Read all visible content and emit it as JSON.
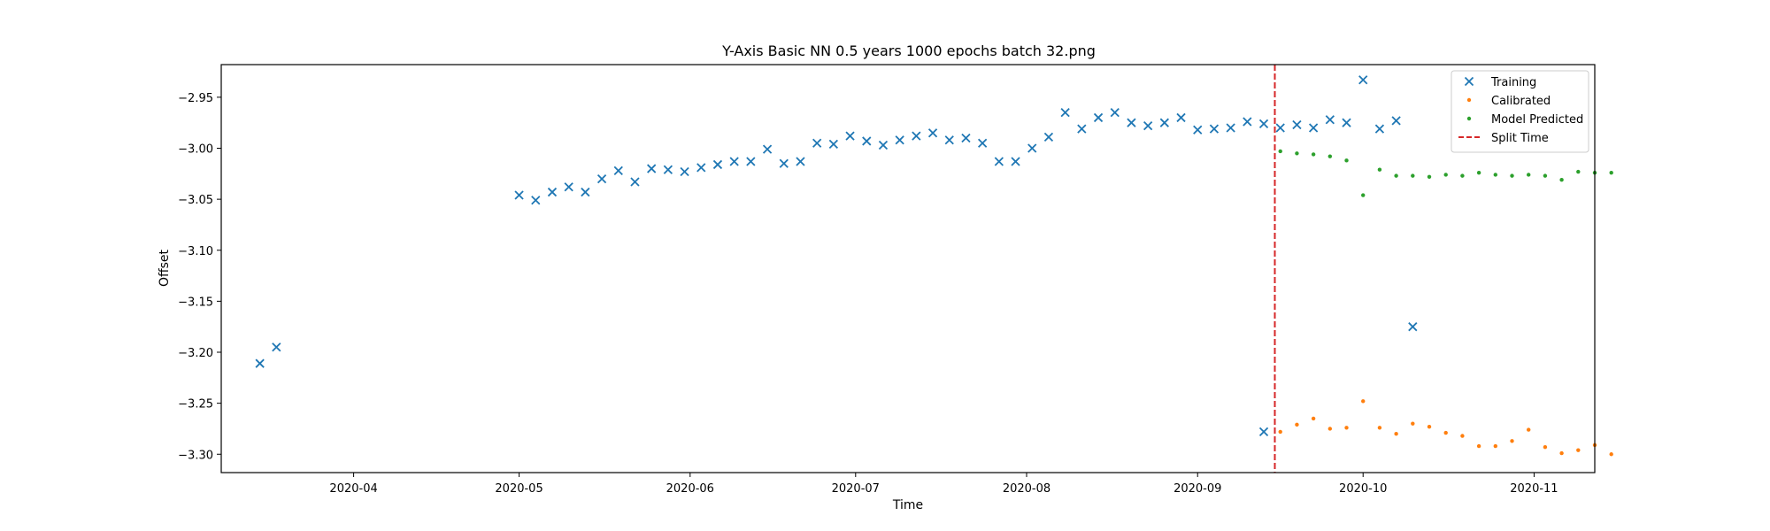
{
  "chart_data": {
    "type": "scatter",
    "title": "Y-Axis Basic NN 0.5 years 1000 epochs batch 32.png",
    "xlabel": "Time",
    "ylabel": "Offset",
    "x_is_date": true,
    "xlim": [
      "2020-03-08",
      "2020-11-12"
    ],
    "ylim": [
      -3.318,
      -2.918
    ],
    "x_ticks": [
      "2020-04-01",
      "2020-05-01",
      "2020-06-01",
      "2020-07-01",
      "2020-08-01",
      "2020-09-01",
      "2020-10-01",
      "2020-11-01"
    ],
    "x_tick_labels": [
      "2020-04",
      "2020-05",
      "2020-06",
      "2020-07",
      "2020-08",
      "2020-09",
      "2020-10",
      "2020-11"
    ],
    "y_ticks": [
      -2.95,
      -3.0,
      -3.05,
      -3.1,
      -3.15,
      -3.2,
      -3.25,
      -3.3
    ],
    "y_tick_labels": [
      "−2.95",
      "−3.00",
      "−3.05",
      "−3.10",
      "−3.15",
      "−3.20",
      "−3.25",
      "−3.30"
    ],
    "grid": false,
    "legend_position": "top-right",
    "split_time": "2020-09-15",
    "series": [
      {
        "name": "Training",
        "marker": "x",
        "color": "#1f77b4",
        "points": [
          [
            "2020-03-15",
            -3.211
          ],
          [
            "2020-03-18",
            -3.195
          ],
          [
            "2020-05-01",
            -3.046
          ],
          [
            "2020-05-04",
            -3.051
          ],
          [
            "2020-05-07",
            -3.043
          ],
          [
            "2020-05-10",
            -3.038
          ],
          [
            "2020-05-13",
            -3.043
          ],
          [
            "2020-05-16",
            -3.03
          ],
          [
            "2020-05-19",
            -3.022
          ],
          [
            "2020-05-22",
            -3.033
          ],
          [
            "2020-05-25",
            -3.02
          ],
          [
            "2020-05-28",
            -3.021
          ],
          [
            "2020-05-31",
            -3.023
          ],
          [
            "2020-06-03",
            -3.019
          ],
          [
            "2020-06-06",
            -3.016
          ],
          [
            "2020-06-09",
            -3.013
          ],
          [
            "2020-06-12",
            -3.013
          ],
          [
            "2020-06-15",
            -3.001
          ],
          [
            "2020-06-18",
            -3.015
          ],
          [
            "2020-06-21",
            -3.013
          ],
          [
            "2020-06-24",
            -2.995
          ],
          [
            "2020-06-27",
            -2.996
          ],
          [
            "2020-06-30",
            -2.988
          ],
          [
            "2020-07-03",
            -2.993
          ],
          [
            "2020-07-06",
            -2.997
          ],
          [
            "2020-07-09",
            -2.992
          ],
          [
            "2020-07-12",
            -2.988
          ],
          [
            "2020-07-15",
            -2.985
          ],
          [
            "2020-07-18",
            -2.992
          ],
          [
            "2020-07-21",
            -2.99
          ],
          [
            "2020-07-24",
            -2.995
          ],
          [
            "2020-07-27",
            -3.013
          ],
          [
            "2020-07-30",
            -3.013
          ],
          [
            "2020-08-02",
            -3.0
          ],
          [
            "2020-08-05",
            -2.989
          ],
          [
            "2020-08-08",
            -2.965
          ],
          [
            "2020-08-11",
            -2.981
          ],
          [
            "2020-08-14",
            -2.97
          ],
          [
            "2020-08-17",
            -2.965
          ],
          [
            "2020-08-20",
            -2.975
          ],
          [
            "2020-08-23",
            -2.978
          ],
          [
            "2020-08-26",
            -2.975
          ],
          [
            "2020-08-29",
            -2.97
          ],
          [
            "2020-09-01",
            -2.982
          ],
          [
            "2020-09-04",
            -2.981
          ],
          [
            "2020-09-07",
            -2.98
          ],
          [
            "2020-09-10",
            -2.974
          ],
          [
            "2020-09-13",
            -2.976
          ],
          [
            "2020-09-16",
            -2.98
          ],
          [
            "2020-09-19",
            -2.977
          ],
          [
            "2020-09-22",
            -2.98
          ],
          [
            "2020-09-25",
            -2.972
          ],
          [
            "2020-09-28",
            -2.975
          ],
          [
            "2020-10-01",
            -2.933
          ],
          [
            "2020-10-04",
            -2.981
          ],
          [
            "2020-10-07",
            -2.973
          ],
          [
            "2020-10-10",
            -3.175
          ],
          [
            "2020-09-13",
            -3.278
          ]
        ]
      },
      {
        "name": "Calibrated",
        "marker": "dot",
        "color": "#ff7f0e",
        "points": [
          [
            "2020-09-16",
            -3.278
          ],
          [
            "2020-09-19",
            -3.271
          ],
          [
            "2020-09-22",
            -3.265
          ],
          [
            "2020-09-25",
            -3.275
          ],
          [
            "2020-09-28",
            -3.274
          ],
          [
            "2020-10-01",
            -3.248
          ],
          [
            "2020-10-04",
            -3.274
          ],
          [
            "2020-10-07",
            -3.28
          ],
          [
            "2020-10-10",
            -3.27
          ],
          [
            "2020-10-13",
            -3.273
          ],
          [
            "2020-10-16",
            -3.279
          ],
          [
            "2020-10-19",
            -3.282
          ],
          [
            "2020-10-22",
            -3.292
          ],
          [
            "2020-10-25",
            -3.292
          ],
          [
            "2020-10-28",
            -3.287
          ],
          [
            "2020-10-31",
            -3.276
          ],
          [
            "2020-11-03",
            -3.293
          ],
          [
            "2020-11-06",
            -3.299
          ],
          [
            "2020-11-09",
            -3.296
          ],
          [
            "2020-11-12",
            -3.291
          ],
          [
            "2020-11-15",
            -3.3
          ]
        ]
      },
      {
        "name": "Model Predicted",
        "marker": "dot",
        "color": "#2ca02c",
        "points": [
          [
            "2020-09-16",
            -3.003
          ],
          [
            "2020-09-19",
            -3.005
          ],
          [
            "2020-09-22",
            -3.006
          ],
          [
            "2020-09-25",
            -3.008
          ],
          [
            "2020-09-28",
            -3.012
          ],
          [
            "2020-10-01",
            -3.046
          ],
          [
            "2020-10-04",
            -3.021
          ],
          [
            "2020-10-07",
            -3.027
          ],
          [
            "2020-10-10",
            -3.027
          ],
          [
            "2020-10-13",
            -3.028
          ],
          [
            "2020-10-16",
            -3.026
          ],
          [
            "2020-10-19",
            -3.027
          ],
          [
            "2020-10-22",
            -3.024
          ],
          [
            "2020-10-25",
            -3.026
          ],
          [
            "2020-10-28",
            -3.027
          ],
          [
            "2020-10-31",
            -3.026
          ],
          [
            "2020-11-03",
            -3.027
          ],
          [
            "2020-11-06",
            -3.031
          ],
          [
            "2020-11-09",
            -3.023
          ],
          [
            "2020-11-12",
            -3.024
          ],
          [
            "2020-11-15",
            -3.024
          ]
        ]
      }
    ],
    "legend": [
      {
        "label": "Training",
        "marker": "x",
        "color": "#1f77b4"
      },
      {
        "label": "Calibrated",
        "marker": "dot",
        "color": "#ff7f0e"
      },
      {
        "label": "Model Predicted",
        "marker": "dot",
        "color": "#2ca02c"
      },
      {
        "label": "Split Time",
        "marker": "dashed-line",
        "color": "#d62728"
      }
    ]
  }
}
